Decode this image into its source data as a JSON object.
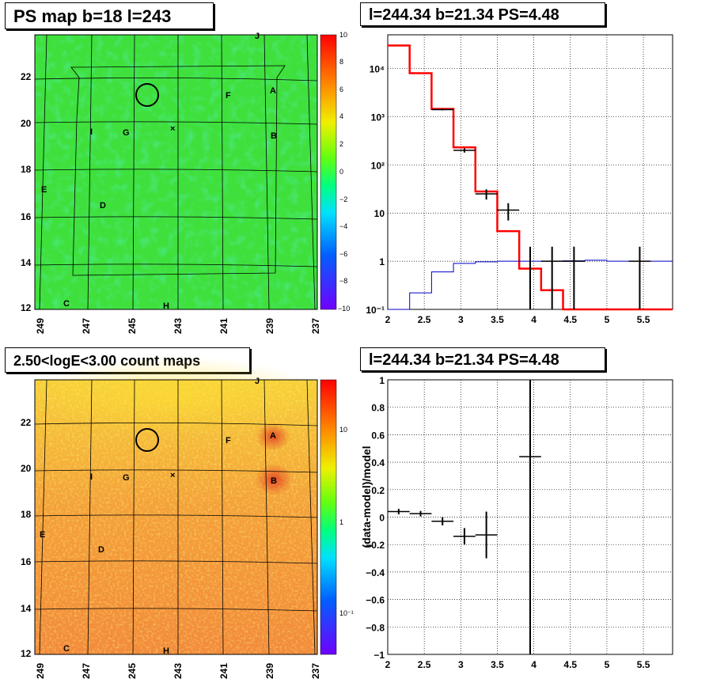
{
  "panel_titles": {
    "ps_map": "PS map b=18 l=243",
    "spectrum": "l=244.34 b=21.34 PS=4.48",
    "count_map": "2.50<logE<3.00 count maps",
    "residual": "l=244.34 b=21.34 PS=4.48"
  },
  "colors": {
    "ps_map_background": "#3fe03c",
    "count_map_background": "#f2993a",
    "data_points": "#000000",
    "model_line": "#ff0000",
    "background_line": "#0000cc"
  },
  "maps": {
    "xaxis_ticks": [
      "249",
      "247",
      "245",
      "243",
      "241",
      "239",
      "237"
    ],
    "yaxis_ticks": [
      "12",
      "14",
      "16",
      "18",
      "20",
      "22"
    ],
    "source_markers": [
      "J",
      "A",
      "F",
      "G",
      "I",
      "B",
      "E",
      "D",
      "C",
      "H"
    ],
    "ps_colorbar_ticks": [
      "10",
      "8",
      "6",
      "4",
      "2",
      "0",
      "−2",
      "−4",
      "−6",
      "−8",
      "−10"
    ],
    "count_colorbar_ticks": [
      "10",
      "1",
      "10⁻¹"
    ]
  },
  "chart_data": [
    {
      "type": "heatmap",
      "title": "PS map b=18 l=243",
      "xlabel": "",
      "ylabel": "",
      "xlim": [
        249,
        237
      ],
      "ylim": [
        12,
        23.6
      ],
      "colorbar_range": [
        -10,
        10
      ],
      "markers": [
        {
          "label": "J",
          "x": 239.0,
          "y": 23.5
        },
        {
          "label": "A",
          "x": 238.9,
          "y": 21.5
        },
        {
          "label": "F",
          "x": 240.8,
          "y": 21.3
        },
        {
          "label": "G",
          "x": 245.5,
          "y": 19.7
        },
        {
          "label": "I",
          "x": 247.1,
          "y": 19.7
        },
        {
          "label": "B",
          "x": 238.8,
          "y": 19.5
        },
        {
          "label": "E",
          "x": 248.8,
          "y": 17.4
        },
        {
          "label": "D",
          "x": 246.0,
          "y": 16.3
        },
        {
          "label": "C",
          "x": 248.1,
          "y": 12.1
        },
        {
          "label": "H",
          "x": 243.9,
          "y": 12.1
        }
      ],
      "circle": {
        "x": 244.34,
        "y": 21.34
      }
    },
    {
      "type": "line",
      "title": "l=244.34 b=21.34 PS=4.48",
      "xlabel": "",
      "ylabel": "",
      "xlim": [
        2,
        5.9
      ],
      "ylim": [
        0.1,
        50000
      ],
      "yscale": "log",
      "x_ticks": [
        "2",
        "2.5",
        "3",
        "3.5",
        "4",
        "4.5",
        "5",
        "5.5"
      ],
      "y_ticks": [
        "10⁻¹",
        "1",
        "10",
        "10²",
        "10³",
        "10⁴"
      ],
      "grid": true,
      "model_steps": {
        "edges": [
          2.0,
          2.3,
          2.6,
          2.9,
          3.2,
          3.5,
          3.8,
          4.1,
          4.4,
          4.7,
          5.0,
          5.3,
          5.6,
          5.9
        ],
        "values": [
          30000,
          8000,
          1450,
          230,
          28,
          4.2,
          0.7,
          0.25,
          0.1,
          0.1,
          0.1,
          0.1,
          0.1
        ]
      },
      "background_steps": {
        "edges": [
          2.0,
          2.3,
          2.6,
          2.9,
          3.2,
          3.5,
          3.8,
          4.1,
          4.4,
          4.7,
          5.0,
          5.3,
          5.6,
          5.9
        ],
        "values": [
          0.1,
          0.22,
          0.6,
          0.9,
          0.97,
          1.0,
          1.0,
          1.0,
          1.02,
          1.05,
          1.0,
          1.0,
          1.0
        ]
      },
      "data_points": [
        {
          "x": 2.75,
          "y": 1400,
          "xerr": 0.15,
          "ylo": 1350,
          "yhi": 1450
        },
        {
          "x": 3.05,
          "y": 200,
          "xerr": 0.15,
          "ylo": 180,
          "yhi": 220
        },
        {
          "x": 3.35,
          "y": 25,
          "xerr": 0.15,
          "ylo": 19,
          "yhi": 31
        },
        {
          "x": 3.65,
          "y": 11.5,
          "xerr": 0.15,
          "ylo": 7,
          "yhi": 16
        },
        {
          "x": 3.95,
          "y": 1,
          "xerr": 0.0,
          "ylo": 0.1,
          "yhi": 2
        },
        {
          "x": 4.25,
          "y": 1,
          "xerr": 0.15,
          "ylo": 0.1,
          "yhi": 2
        },
        {
          "x": 4.55,
          "y": 1,
          "xerr": 0.15,
          "ylo": 0.1,
          "yhi": 2
        },
        {
          "x": 5.45,
          "y": 1,
          "xerr": 0.15,
          "ylo": 0.1,
          "yhi": 2
        }
      ]
    },
    {
      "type": "heatmap",
      "title": "2.50<logE<3.00 count maps",
      "xlabel": "",
      "ylabel": "",
      "xlim": [
        249,
        237
      ],
      "ylim": [
        12,
        23.6
      ],
      "colorbar_scale": "log",
      "markers": [
        {
          "label": "J",
          "x": 239.0,
          "y": 23.5
        },
        {
          "label": "A",
          "x": 238.9,
          "y": 21.5
        },
        {
          "label": "F",
          "x": 240.8,
          "y": 21.3
        },
        {
          "label": "G",
          "x": 245.5,
          "y": 19.7
        },
        {
          "label": "I",
          "x": 247.1,
          "y": 19.7
        },
        {
          "label": "B",
          "x": 238.8,
          "y": 19.5
        },
        {
          "label": "E",
          "x": 248.8,
          "y": 17.4
        },
        {
          "label": "D",
          "x": 246.0,
          "y": 16.3
        },
        {
          "label": "C",
          "x": 248.1,
          "y": 12.1
        },
        {
          "label": "H",
          "x": 243.9,
          "y": 12.1
        }
      ],
      "circle": {
        "x": 244.34,
        "y": 21.34
      }
    },
    {
      "type": "scatter",
      "title": "l=244.34 b=21.34 PS=4.48",
      "xlabel": "",
      "ylabel": "(data-model)/model",
      "xlim": [
        2,
        5.9
      ],
      "ylim": [
        -1,
        1
      ],
      "x_ticks": [
        "2",
        "2.5",
        "3",
        "3.5",
        "4",
        "4.5",
        "5",
        "5.5"
      ],
      "y_ticks": [
        "−1",
        "−0.8",
        "−0.6",
        "−0.4",
        "−0.2",
        "0",
        "0.2",
        "0.4",
        "0.6",
        "0.8",
        "1"
      ],
      "grid": true,
      "points": [
        {
          "x": 2.15,
          "y": 0.04,
          "xerr": 0.15,
          "yerr": 0.02
        },
        {
          "x": 2.45,
          "y": 0.025,
          "xerr": 0.15,
          "yerr": 0.02
        },
        {
          "x": 2.75,
          "y": -0.03,
          "xerr": 0.15,
          "yerr": 0.03
        },
        {
          "x": 3.05,
          "y": -0.14,
          "xerr": 0.15,
          "yerr": 0.06
        },
        {
          "x": 3.35,
          "y": -0.13,
          "xerr": 0.15,
          "yerr": 0.17
        },
        {
          "x": 3.95,
          "y": 0.44,
          "xerr": 0.15,
          "ylo": -1.0,
          "yhi": 1.0
        }
      ]
    }
  ]
}
